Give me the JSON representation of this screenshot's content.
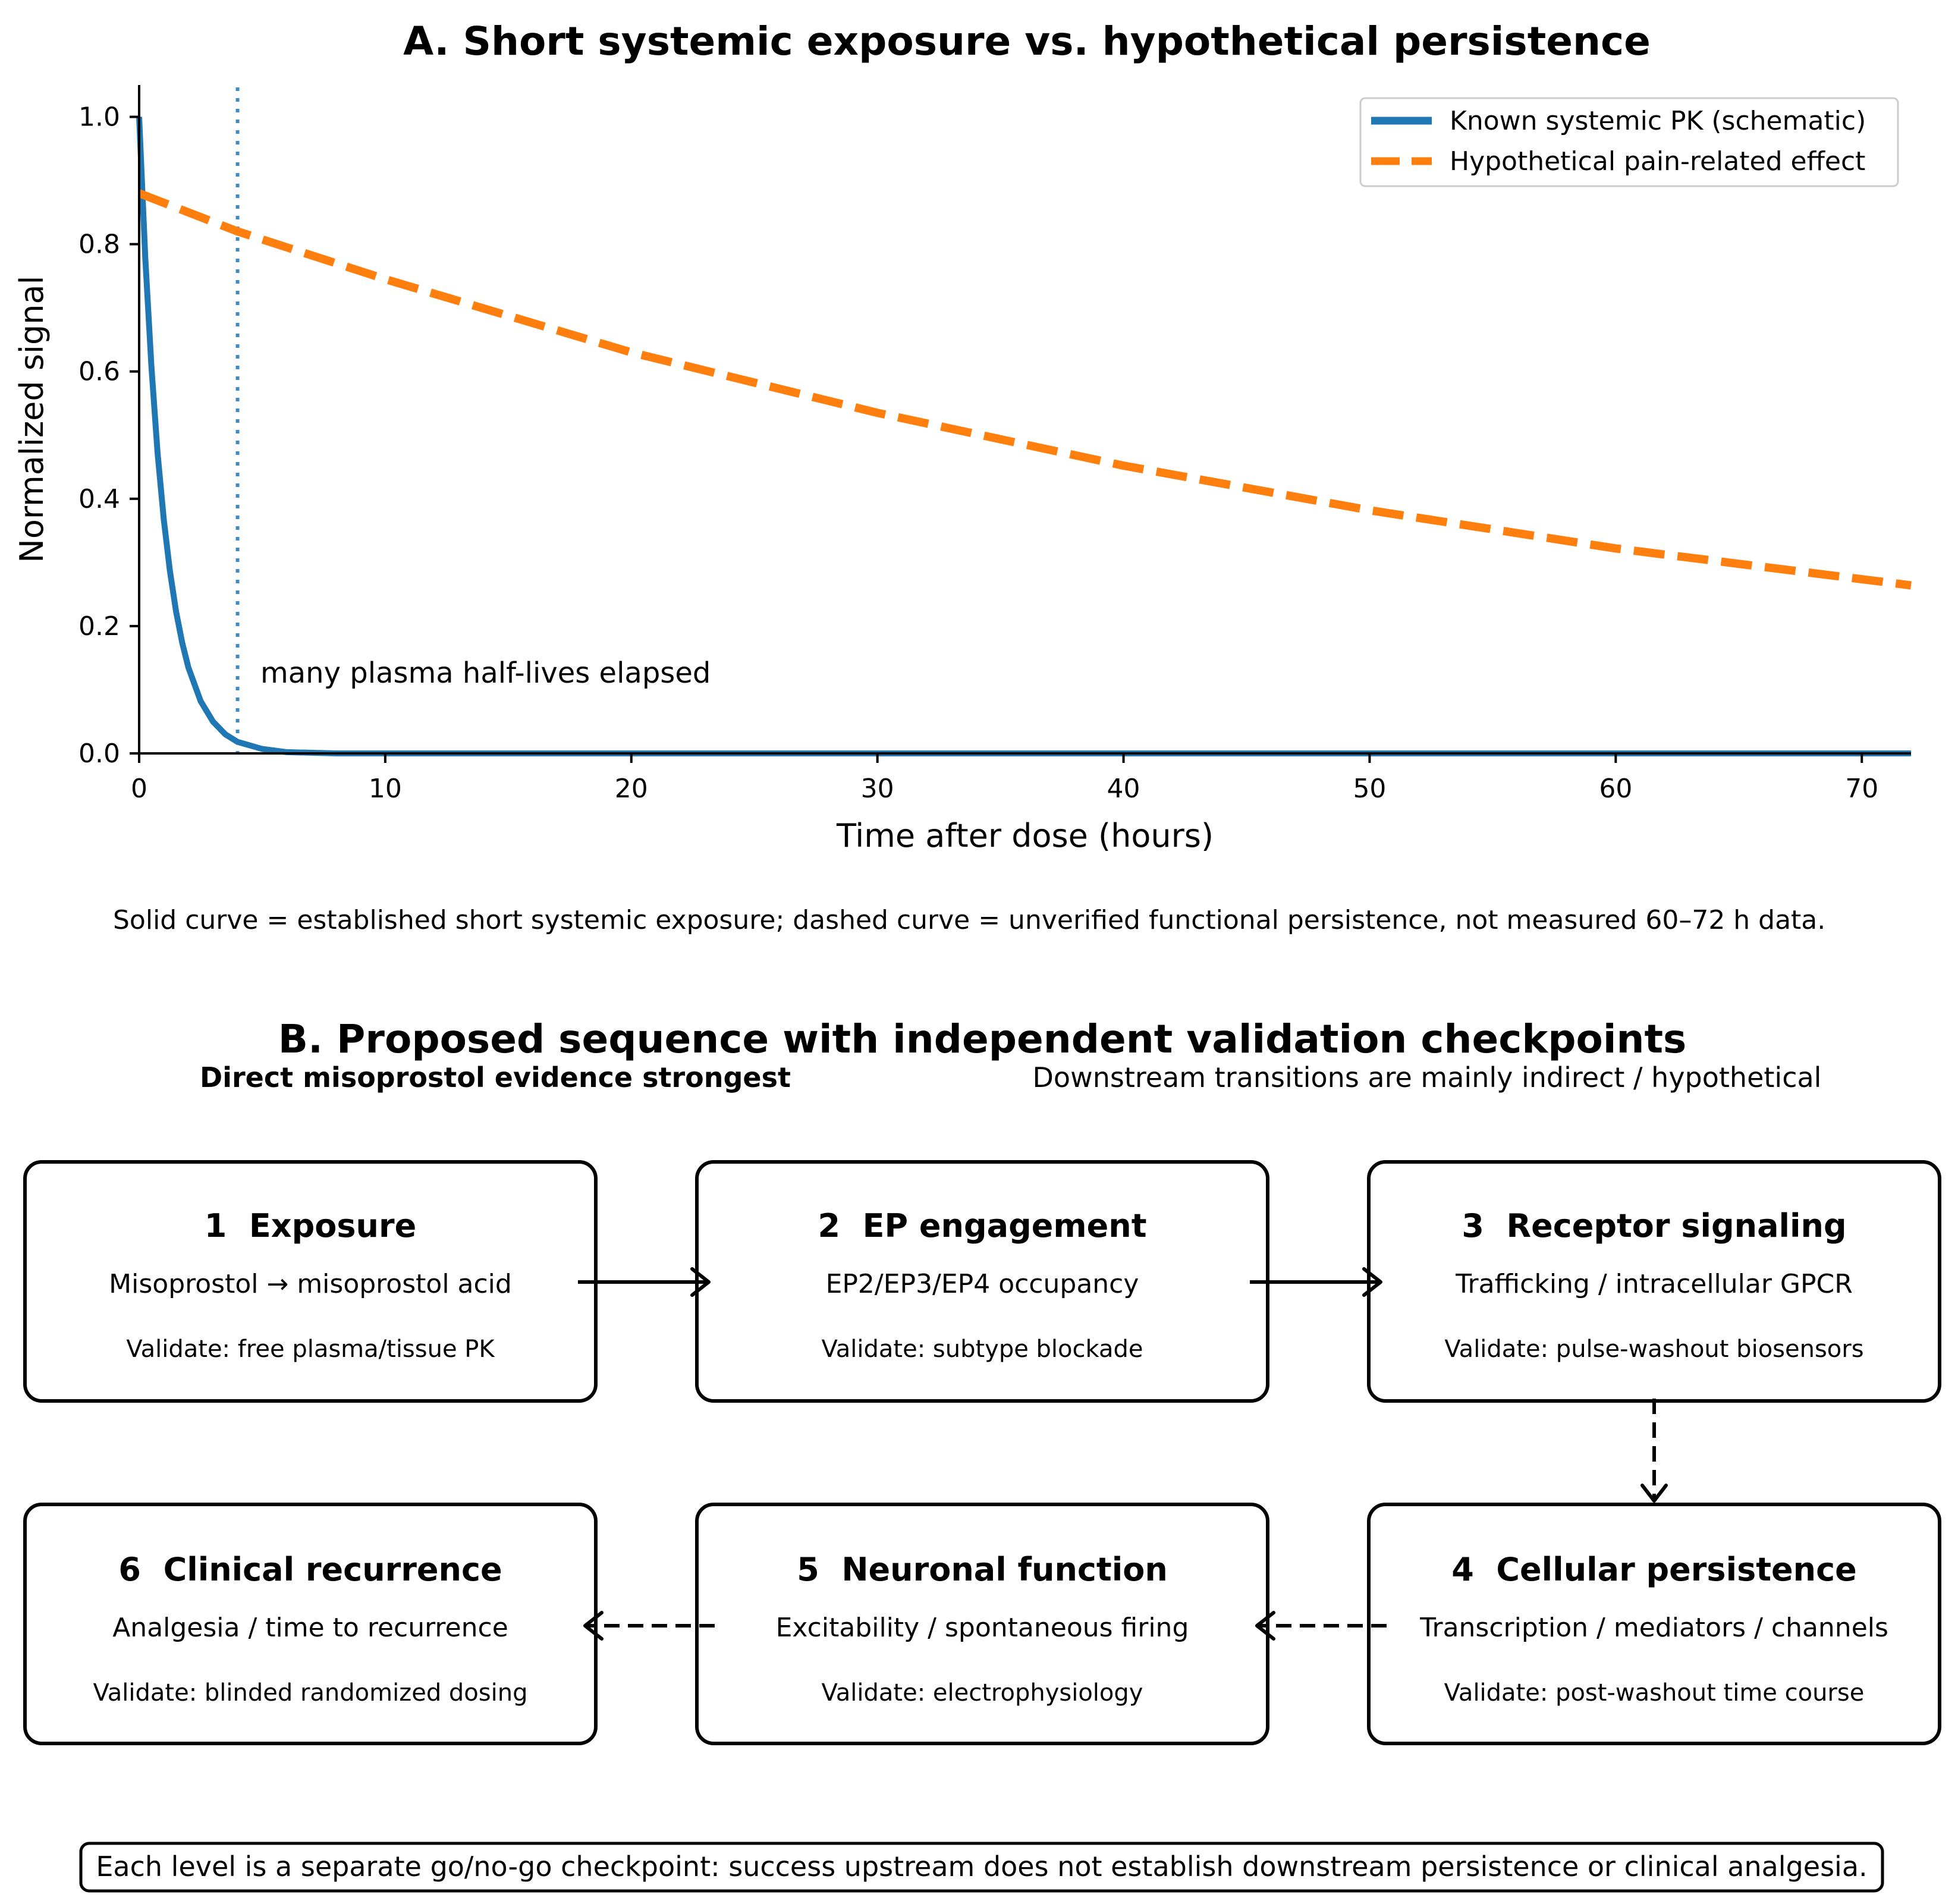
{
  "panel_a": {
    "title": "A. Short systemic exposure vs. hypothetical persistence",
    "annotation": "many plasma half-lives elapsed",
    "caption": "Solid curve = established short systemic exposure; dashed curve = unverified functional persistence, not measured 60–72 h data."
  },
  "chart_data": {
    "type": "line",
    "title": "A. Short systemic exposure vs. hypothetical persistence",
    "xlabel": "Time after dose (hours)",
    "ylabel": "Normalized signal",
    "xlim": [
      0,
      72
    ],
    "ylim": [
      0,
      1.05
    ],
    "xticks": [
      0,
      10,
      20,
      30,
      40,
      50,
      60,
      70
    ],
    "yticks": [
      0.0,
      0.2,
      0.4,
      0.6,
      0.8,
      1.0
    ],
    "grid": false,
    "legend_position": "top-right",
    "vline_x": 4,
    "series": [
      {
        "name": "Known systemic PK (schematic)",
        "style": "solid",
        "color": "#1f77b4",
        "x": [
          0,
          0.25,
          0.5,
          0.75,
          1,
          1.25,
          1.5,
          1.75,
          2,
          2.5,
          3,
          3.5,
          4,
          5,
          6,
          8,
          10,
          20,
          40,
          72
        ],
        "y": [
          1.0,
          0.779,
          0.607,
          0.472,
          0.368,
          0.287,
          0.223,
          0.174,
          0.135,
          0.082,
          0.05,
          0.03,
          0.018,
          0.007,
          0.002,
          0.0,
          0.0,
          0.0,
          0.0,
          0.0
        ]
      },
      {
        "name": "Hypothetical pain-related effect",
        "style": "dashed",
        "color": "#ff7f0e",
        "x": [
          0,
          4,
          10,
          20,
          30,
          40,
          50,
          60,
          72
        ],
        "y": [
          0.88,
          0.82,
          0.745,
          0.63,
          0.535,
          0.452,
          0.382,
          0.322,
          0.264
        ]
      }
    ]
  },
  "panel_b": {
    "title": "B. Proposed sequence with independent validation checkpoints",
    "subtitle_left": "Direct misoprostol evidence strongest",
    "subtitle_right": "Downstream transitions are mainly indirect / hypothetical",
    "boxes": [
      {
        "title": "1  Exposure",
        "line": "Misoprostol → misoprostol acid",
        "validate": "Validate: free plasma/tissue PK"
      },
      {
        "title": "2  EP engagement",
        "line": "EP2/EP3/EP4 occupancy",
        "validate": "Validate: subtype blockade"
      },
      {
        "title": "3  Receptor signaling",
        "line": "Trafficking / intracellular GPCR",
        "validate": "Validate: pulse-washout biosensors"
      },
      {
        "title": "4  Cellular persistence",
        "line": "Transcription / mediators / channels",
        "validate": "Validate: post-washout time course"
      },
      {
        "title": "5  Neuronal function",
        "line": "Excitability / spontaneous firing",
        "validate": "Validate: electrophysiology"
      },
      {
        "title": "6  Clinical recurrence",
        "line": "Analgesia / time to recurrence",
        "validate": "Validate: blinded randomized dosing"
      }
    ],
    "footer": "Each level is a separate go/no-go checkpoint: success upstream does not establish downstream persistence or clinical analgesia."
  }
}
